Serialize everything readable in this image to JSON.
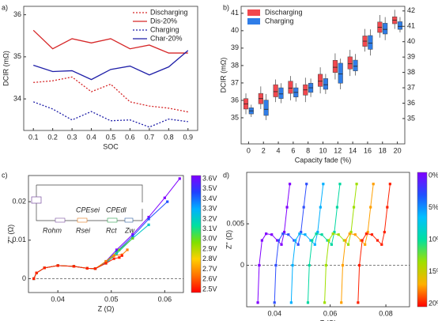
{
  "chart_data": [
    {
      "type": "line",
      "label": "a)",
      "xlabel": "SOC",
      "ylabel": "DCIR (mΩ)",
      "x": [
        0.1,
        0.2,
        0.3,
        0.4,
        0.5,
        0.6,
        0.7,
        0.8,
        0.9
      ],
      "xlim": [
        0.05,
        0.95
      ],
      "xticks": [
        0.1,
        0.2,
        0.3,
        0.4,
        0.5,
        0.6,
        0.7,
        0.8,
        0.9
      ],
      "ylim": [
        33.25,
        36.2
      ],
      "yticks": [
        34,
        35,
        36
      ],
      "legend": "top-right",
      "series": [
        {
          "name": "Discharging",
          "color": "#d62728",
          "dash": true,
          "values": [
            34.39,
            34.43,
            34.52,
            34.17,
            34.35,
            33.93,
            33.83,
            33.78,
            33.69
          ]
        },
        {
          "name": "Dis-20%",
          "color": "#d62728",
          "dash": false,
          "values": [
            35.63,
            35.19,
            35.43,
            35.33,
            35.43,
            35.19,
            35.28,
            35.09,
            35.09
          ]
        },
        {
          "name": "Charging",
          "color": "#1f1fa8",
          "dash": true,
          "values": [
            33.93,
            33.76,
            33.5,
            33.7,
            33.48,
            33.5,
            33.33,
            33.52,
            33.46
          ]
        },
        {
          "name": "Char-20%",
          "color": "#1f1fa8",
          "dash": false,
          "values": [
            34.8,
            34.65,
            34.67,
            34.46,
            34.7,
            34.78,
            34.57,
            34.76,
            35.15
          ]
        }
      ]
    },
    {
      "type": "box",
      "label": "b)",
      "xlabel": "Capacity fade (%)",
      "ylabel": "DCIR (mΩ)",
      "ycolor": "#e0262b",
      "y2color": "#1f3fd0",
      "legend": "top-left",
      "categories": [
        "0",
        "2",
        "4",
        "6",
        "8",
        "10",
        "12",
        "14",
        "16",
        "18",
        "20"
      ],
      "ylim": [
        33.5,
        41.4
      ],
      "yticks": [
        35,
        36,
        37,
        38,
        39,
        40,
        41
      ],
      "y2lim": [
        33.35,
        42.3
      ],
      "y2ticks": [
        35,
        36,
        37,
        38,
        39,
        40,
        41,
        42
      ],
      "series": [
        {
          "name": "Discharging",
          "color": "#f2484e",
          "axis": "y",
          "min": [
            35.2,
            35.5,
            35.9,
            36.0,
            35.9,
            36.4,
            37.2,
            37.4,
            38.8,
            39.6,
            40.1
          ],
          "q1": [
            35.5,
            35.8,
            36.2,
            36.4,
            36.3,
            36.8,
            37.6,
            37.8,
            39.1,
            39.9,
            40.4
          ],
          "median": [
            35.8,
            36.1,
            36.5,
            36.7,
            36.6,
            37.1,
            37.9,
            38.1,
            39.4,
            40.2,
            40.6
          ],
          "q3": [
            36.1,
            36.4,
            36.9,
            37.1,
            36.9,
            37.5,
            38.3,
            38.5,
            39.7,
            40.5,
            40.8
          ],
          "max": [
            36.4,
            36.8,
            37.2,
            37.4,
            37.3,
            37.9,
            38.7,
            38.9,
            40.1,
            40.9,
            41.2
          ]
        },
        {
          "name": "Charging",
          "color": "#2f7de8",
          "axis": "y2",
          "min": [
            35.1,
            34.9,
            36.0,
            36.1,
            36.4,
            36.6,
            36.9,
            37.8,
            39.1,
            40.1,
            40.6
          ],
          "q1": [
            35.3,
            35.2,
            36.3,
            36.4,
            36.7,
            36.9,
            37.3,
            38.1,
            39.5,
            40.5,
            40.8
          ],
          "median": [
            35.5,
            35.6,
            36.6,
            36.7,
            37.0,
            37.2,
            37.9,
            38.4,
            39.9,
            40.8,
            41.0
          ],
          "q3": [
            35.7,
            36.2,
            37.0,
            37.0,
            37.3,
            37.6,
            38.6,
            38.8,
            40.4,
            41.2,
            41.3
          ],
          "max": [
            35.9,
            36.6,
            37.3,
            37.3,
            37.6,
            37.9,
            38.9,
            39.2,
            40.8,
            41.6,
            41.6
          ]
        }
      ]
    },
    {
      "type": "line",
      "label": "c)",
      "xlabel": "Z (Ω)",
      "ylabel": "Z'' (Ω)",
      "marker": "square",
      "zero_line": true,
      "xlim": [
        0.0345,
        0.0635
      ],
      "xticks": [
        0.04,
        0.05,
        0.06
      ],
      "ylim": [
        -0.0036,
        0.0268
      ],
      "yticks": [
        0,
        0.01,
        0.02
      ],
      "inset_labels": [
        "Rohm",
        "CPEsei",
        "Rsei",
        "CPEdl",
        "Rct",
        "Zw"
      ],
      "colorbar": {
        "labels": [
          "3.6V",
          "3.5V",
          "3.4V",
          "3.3V",
          "3.2V",
          "3.1V",
          "3.0V",
          "2.9V",
          "2.8V",
          "2.7V",
          "2.6V",
          "2.5V"
        ],
        "colors": [
          "#7f00ff",
          "#2040ff",
          "#00b0ff",
          "#00e0a0",
          "#80e000",
          "#ffd000",
          "#ff7000",
          "#ff0000"
        ]
      },
      "series": [
        {
          "color": "#7f00ff",
          "x": [
            0.0355,
            0.036,
            0.0375,
            0.04,
            0.043,
            0.0455,
            0.047,
            0.049,
            0.051,
            0.054,
            0.057,
            0.06,
            0.0628
          ],
          "values": [
            0,
            0.0015,
            0.0028,
            0.0034,
            0.0032,
            0.0027,
            0.0026,
            0.0045,
            0.0075,
            0.0115,
            0.016,
            0.021,
            0.026
          ]
        },
        {
          "color": "#2050ff",
          "x": [
            0.0355,
            0.036,
            0.0375,
            0.04,
            0.043,
            0.0455,
            0.047,
            0.049,
            0.051,
            0.054,
            0.057,
            0.0605
          ],
          "values": [
            0,
            0.0015,
            0.0028,
            0.0034,
            0.0032,
            0.0027,
            0.0026,
            0.0042,
            0.007,
            0.011,
            0.0155,
            0.02
          ]
        },
        {
          "color": "#00c8c8",
          "x": [
            0.0355,
            0.036,
            0.0375,
            0.04,
            0.043,
            0.0455,
            0.047,
            0.049,
            0.051,
            0.054,
            0.057
          ],
          "values": [
            0,
            0.0015,
            0.0028,
            0.0034,
            0.0032,
            0.0027,
            0.0026,
            0.004,
            0.0065,
            0.0105,
            0.014
          ]
        },
        {
          "color": "#60d020",
          "x": [
            0.0355,
            0.036,
            0.0375,
            0.04,
            0.043,
            0.0455,
            0.047,
            0.049,
            0.0515,
            0.054
          ],
          "values": [
            0,
            0.0015,
            0.0028,
            0.0034,
            0.0032,
            0.0027,
            0.0026,
            0.0045,
            0.0075,
            0.0105
          ]
        },
        {
          "color": "#ff8000",
          "x": [
            0.0355,
            0.036,
            0.0375,
            0.04,
            0.043,
            0.0455,
            0.047,
            0.049,
            0.0505,
            0.052,
            0.053
          ],
          "values": [
            0,
            0.0015,
            0.0028,
            0.0034,
            0.0032,
            0.0027,
            0.0026,
            0.0045,
            0.006,
            0.0062,
            0.0075
          ]
        },
        {
          "color": "#ff2000",
          "x": [
            0.0355,
            0.036,
            0.0375,
            0.04,
            0.043,
            0.0455,
            0.047,
            0.049,
            0.0505,
            0.0515,
            0.052
          ],
          "values": [
            0,
            0.0015,
            0.0028,
            0.0034,
            0.0032,
            0.0027,
            0.0026,
            0.004,
            0.0052,
            0.0055,
            0.006
          ]
        }
      ]
    },
    {
      "type": "line",
      "label": "d)",
      "xlabel": "Z (Ω)",
      "ylabel": "Z'' (Ω)",
      "marker": "square",
      "zero_line": true,
      "xlim": [
        0.03,
        0.0885
      ],
      "xticks": [
        0.04,
        0.06,
        0.08
      ],
      "ylim": [
        -0.005,
        0.0112
      ],
      "yticks": [
        0,
        0.005
      ],
      "colorbar": {
        "labels": [
          "0%",
          "5%",
          "10%",
          "15%",
          "20%"
        ],
        "colors": [
          "#8000ff",
          "#2050ff",
          "#00c0ff",
          "#00e0a0",
          "#a0e000",
          "#ffb000",
          "#ff0000"
        ]
      },
      "series": [
        {
          "color": "#8000ff",
          "x": [
            0.034,
            0.0345,
            0.0355,
            0.037,
            0.039,
            0.041,
            0.0425,
            0.0435,
            0.0445,
            0.0455
          ],
          "values": [
            -0.0045,
            0,
            0.003,
            0.0038,
            0.0037,
            0.003,
            0.0025,
            0.004,
            0.007,
            0.0098
          ]
        },
        {
          "color": "#3050ff",
          "x": [
            0.04,
            0.0405,
            0.0415,
            0.043,
            0.045,
            0.047,
            0.0485,
            0.0495,
            0.0505,
            0.0515
          ],
          "values": [
            -0.0045,
            0,
            0.003,
            0.0038,
            0.0037,
            0.003,
            0.0025,
            0.004,
            0.007,
            0.0098
          ]
        },
        {
          "color": "#00b0ff",
          "x": [
            0.046,
            0.0465,
            0.0475,
            0.049,
            0.051,
            0.053,
            0.0545,
            0.0555,
            0.0565,
            0.0575
          ],
          "values": [
            -0.0045,
            0,
            0.003,
            0.0038,
            0.0037,
            0.003,
            0.0025,
            0.004,
            0.007,
            0.0098
          ]
        },
        {
          "color": "#00d8a0",
          "x": [
            0.052,
            0.0525,
            0.0535,
            0.055,
            0.057,
            0.059,
            0.0605,
            0.0615,
            0.0625,
            0.0635
          ],
          "values": [
            -0.0045,
            0,
            0.003,
            0.0038,
            0.0037,
            0.003,
            0.0025,
            0.004,
            0.007,
            0.0098
          ]
        },
        {
          "color": "#a0e000",
          "x": [
            0.058,
            0.0585,
            0.0595,
            0.061,
            0.063,
            0.065,
            0.0665,
            0.0675,
            0.0685,
            0.0695
          ],
          "values": [
            -0.0045,
            0,
            0.003,
            0.0038,
            0.0037,
            0.003,
            0.0025,
            0.004,
            0.007,
            0.0098
          ]
        },
        {
          "color": "#ffa000",
          "x": [
            0.064,
            0.0645,
            0.0655,
            0.067,
            0.069,
            0.071,
            0.0725,
            0.0735,
            0.0745,
            0.0755
          ],
          "values": [
            -0.0045,
            0,
            0.003,
            0.0038,
            0.0037,
            0.003,
            0.0025,
            0.004,
            0.007,
            0.0098
          ]
        },
        {
          "color": "#ff2000",
          "x": [
            0.07,
            0.0705,
            0.0715,
            0.073,
            0.075,
            0.077,
            0.0785,
            0.0795,
            0.0805,
            0.0815
          ],
          "values": [
            -0.0045,
            0,
            0.003,
            0.0038,
            0.0037,
            0.003,
            0.0025,
            0.004,
            0.007,
            0.0098
          ]
        }
      ]
    }
  ]
}
